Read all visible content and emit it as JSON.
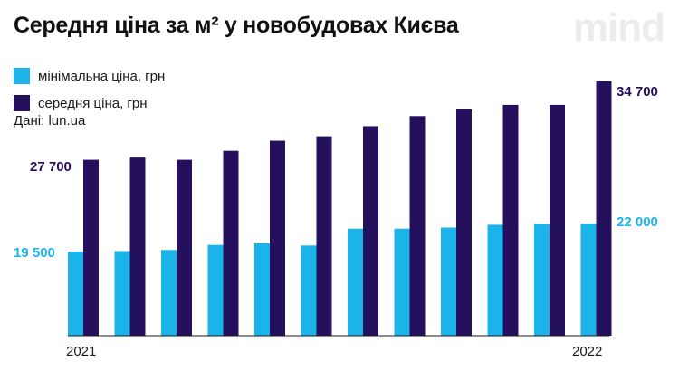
{
  "title": "Середня ціна за м² у новобудовах Києва",
  "logo": "mind",
  "source": "Дані: lun.ua",
  "colors": {
    "min": "#1ab3ea",
    "avg": "#24105c",
    "baseline": "#1a1a1a"
  },
  "chart_data": {
    "type": "bar",
    "categories": [
      "2021",
      "",
      "",
      "",
      "",
      "",
      "",
      "",
      "",
      "",
      "",
      "2022"
    ],
    "series": [
      {
        "name": "мінімальна ціна, грн",
        "values": [
          19500,
          19550,
          19650,
          20100,
          20250,
          20050,
          21550,
          21550,
          21650,
          21900,
          21950,
          22000
        ]
      },
      {
        "name": "середня ціна, грн",
        "values": [
          27700,
          27900,
          27700,
          28500,
          29400,
          29800,
          30700,
          31600,
          32200,
          32600,
          32600,
          34700
        ]
      }
    ],
    "labels": {
      "min_start": "19 500",
      "avg_start": "27 700",
      "min_end": "22 000",
      "avg_end": "34 700"
    },
    "ylim": [
      12000,
      35500
    ]
  }
}
